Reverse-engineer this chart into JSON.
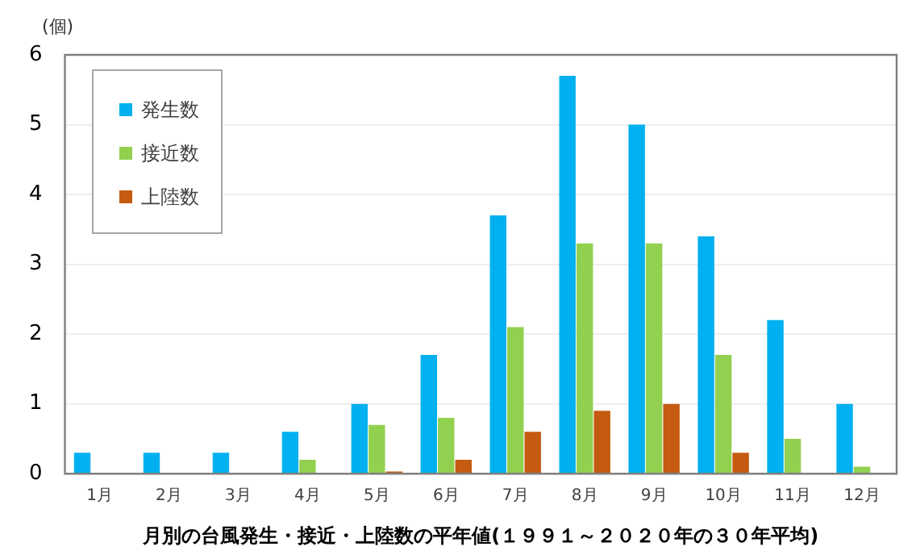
{
  "chart_data": {
    "type": "bar",
    "ylabel": "(個)",
    "xlabel": "月別の台風発生・接近・上陸数の平年値(１９９１～２０２０年の３０年平均)",
    "categories": [
      "1月",
      "2月",
      "3月",
      "4月",
      "5月",
      "6月",
      "7月",
      "8月",
      "9月",
      "10月",
      "11月",
      "12月"
    ],
    "series": [
      {
        "name": "発生数",
        "color": "#00b0f0",
        "values": [
          0.3,
          0.3,
          0.3,
          0.6,
          1.0,
          1.7,
          3.7,
          5.7,
          5.0,
          3.4,
          2.2,
          1.0
        ]
      },
      {
        "name": "接近数",
        "color": "#92d050",
        "values": [
          null,
          null,
          null,
          0.2,
          0.7,
          0.8,
          2.1,
          3.3,
          3.3,
          1.7,
          0.5,
          0.1
        ]
      },
      {
        "name": "上陸数",
        "color": "#c55a11",
        "values": [
          null,
          null,
          null,
          null,
          0.03,
          0.2,
          0.6,
          0.9,
          1.0,
          0.3,
          null,
          null
        ]
      }
    ],
    "ylim": [
      0,
      6
    ],
    "yticks": [
      0,
      1,
      2,
      3,
      4,
      5,
      6
    ],
    "grid": "y",
    "legend": "top left"
  }
}
